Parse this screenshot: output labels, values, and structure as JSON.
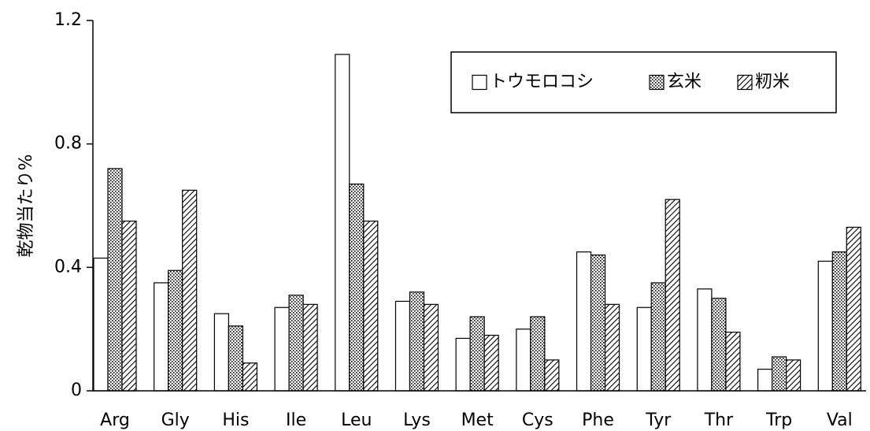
{
  "chart_data": {
    "type": "bar",
    "y_label": "乾物当たり%",
    "categories": [
      "Arg",
      "Gly",
      "His",
      "Ile",
      "Leu",
      "Lys",
      "Met",
      "Cys",
      "Phe",
      "Tyr",
      "Thr",
      "Trp",
      "Val"
    ],
    "series": [
      {
        "name": "トウモロコシ",
        "color": "#ffffff",
        "pattern": "none",
        "values": [
          0.43,
          0.35,
          0.25,
          0.27,
          1.09,
          0.29,
          0.17,
          0.2,
          0.45,
          0.27,
          0.33,
          0.07,
          0.42
        ]
      },
      {
        "name": "玄米",
        "color": "#ffffff",
        "pattern": "dots",
        "values": [
          0.72,
          0.39,
          0.21,
          0.31,
          0.67,
          0.32,
          0.24,
          0.24,
          0.44,
          0.35,
          0.3,
          0.11,
          0.45
        ]
      },
      {
        "name": "籾米",
        "color": "#ffffff",
        "pattern": "hatch",
        "values": [
          0.55,
          0.65,
          0.09,
          0.28,
          0.55,
          0.28,
          0.18,
          0.1,
          0.28,
          0.62,
          0.19,
          0.1,
          0.53
        ]
      }
    ],
    "ylim": [
      0,
      1.2
    ],
    "yticks": [
      0,
      0.4,
      0.8,
      1.2
    ],
    "grid": false,
    "legend": "top-right"
  }
}
